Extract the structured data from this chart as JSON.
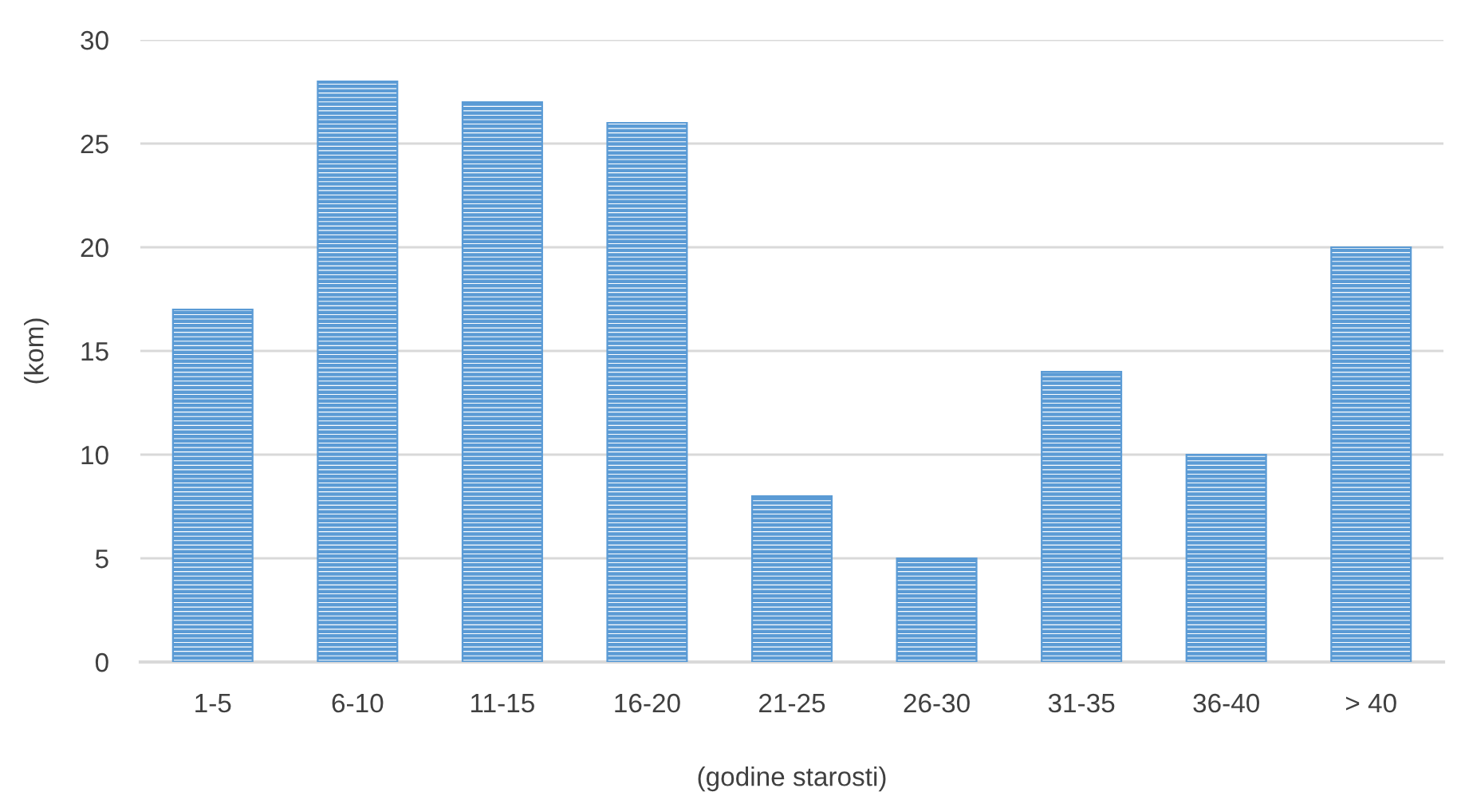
{
  "chart_data": {
    "type": "bar",
    "xlabel": "(godine starosti)",
    "ylabel": "(kom)",
    "categories": [
      "1-5",
      "6-10",
      "11-15",
      "16-20",
      "21-25",
      "26-30",
      "31-35",
      "36-40",
      "> 40"
    ],
    "values": [
      17,
      28,
      27,
      26,
      8,
      5,
      14,
      10,
      20
    ],
    "color": "#5b9bd5",
    "ylim": [
      0,
      30
    ],
    "yticks": [
      0,
      5,
      10,
      15,
      20,
      25,
      30
    ],
    "grid": "y",
    "legend": false
  }
}
